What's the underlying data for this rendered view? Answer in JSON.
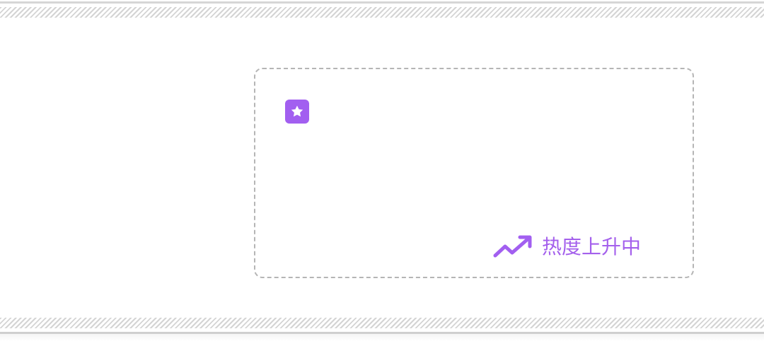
{
  "card": {
    "badge_icon": "star-icon",
    "trend": {
      "icon": "trending-up-icon",
      "label": "热度上升中"
    }
  },
  "colors": {
    "accent": "#a25ff0",
    "card_border": "#b5b5b5",
    "band_rule": "#d6d6d6"
  }
}
